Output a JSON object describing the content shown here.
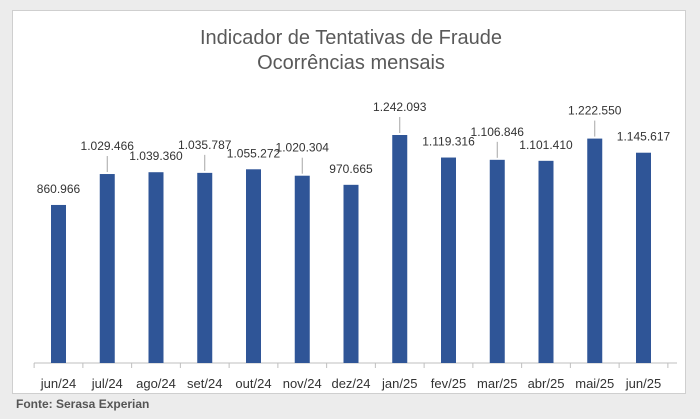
{
  "chart_data": {
    "type": "bar",
    "title": "Indicador de Tentativas de Fraude",
    "subtitle": "Ocorrências mensais",
    "categories": [
      "jun/24",
      "jul/24",
      "ago/24",
      "set/24",
      "out/24",
      "nov/24",
      "dez/24",
      "jan/25",
      "fev/25",
      "mar/25",
      "abr/25",
      "mai/25",
      "jun/25"
    ],
    "values": [
      860966,
      1029466,
      1039360,
      1035787,
      1055272,
      1020304,
      970665,
      1242093,
      1119316,
      1106846,
      1101410,
      1222550,
      1145617
    ],
    "value_labels": [
      "860.966",
      "1.029.466",
      "1.039.360",
      "1.035.787",
      "1.055.272",
      "1.020.304",
      "970.665",
      "1.242.093",
      "1.119.316",
      "1.106.846",
      "1.101.410",
      "1.222.550",
      "1.145.617"
    ],
    "ylim": [
      0,
      1300000
    ],
    "grid": false,
    "legend": "none",
    "bar_color": "#2f5597"
  },
  "footer": {
    "source": "Fonte: Serasa Experian"
  }
}
